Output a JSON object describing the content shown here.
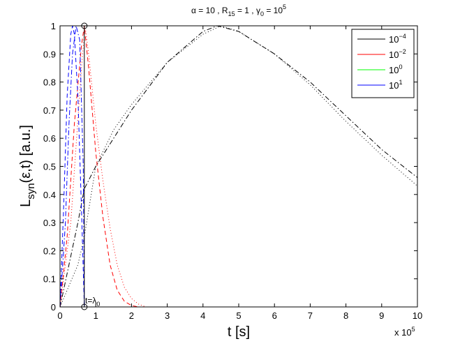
{
  "chart_data": {
    "type": "line",
    "title": "α = 10 , R15 = 1 , γ0 = 10^5",
    "title_parts": {
      "alpha": "α = 10 , R",
      "r_sub": "15",
      "r_eq": " = 1 , γ",
      "g_sub": "0",
      "g_eq": " = 10",
      "g_sup": "5"
    },
    "xlabel": "t [s]",
    "ylabel": "Lsyn(ε,t) [a.u.]",
    "ylabel_parts": {
      "main": "L",
      "sub": "syn",
      "rest": "(ε,t) [a.u.]"
    },
    "x_multiplier": "x 10",
    "x_multiplier_exp": "5",
    "xlim": [
      0,
      1000000
    ],
    "ylim": [
      0,
      1
    ],
    "xticks": [
      0,
      100000,
      200000,
      300000,
      400000,
      500000,
      600000,
      700000,
      800000,
      900000,
      1000000
    ],
    "xtick_labels": [
      "0",
      "1",
      "2",
      "3",
      "4",
      "5",
      "6",
      "7",
      "8",
      "9",
      "10"
    ],
    "yticks": [
      0,
      0.1,
      0.2,
      0.3,
      0.4,
      0.5,
      0.6,
      0.7,
      0.8,
      0.9,
      1
    ],
    "ytick_labels": [
      "0",
      "0.1",
      "0.2",
      "0.3",
      "0.4",
      "0.5",
      "0.6",
      "0.7",
      "0.8",
      "0.9",
      "1"
    ],
    "grid": false,
    "legend_position": "top-right",
    "legend": [
      {
        "base": "10",
        "exp": "−4",
        "color": "#000000"
      },
      {
        "base": "10",
        "exp": "−2",
        "color": "#ff0000"
      },
      {
        "base": "10",
        "exp": "0",
        "color": "#00ff00"
      },
      {
        "base": "10",
        "exp": "1",
        "color": "#0000ff"
      }
    ],
    "annotation": {
      "text_main": "t=λ",
      "text_sub": "0",
      "x": 68000
    },
    "series": [
      {
        "color": "#000000",
        "dash": "dashdot",
        "x": [
          0,
          50000,
          68000,
          100000,
          150000,
          200000,
          300000,
          400000,
          440000,
          500000,
          600000,
          700000,
          800000,
          900000,
          1000000
        ],
        "y": [
          0,
          0.3,
          0.42,
          0.5,
          0.6,
          0.7,
          0.87,
          0.98,
          1.0,
          0.98,
          0.9,
          0.8,
          0.68,
          0.56,
          0.46
        ]
      },
      {
        "color": "#000000",
        "dash": "dotted",
        "x": [
          0,
          50000,
          68000,
          100000,
          150000,
          200000,
          300000,
          400000,
          450000,
          500000,
          600000,
          700000,
          800000,
          900000,
          1000000
        ],
        "y": [
          0,
          0.15,
          0.25,
          0.5,
          0.63,
          0.72,
          0.87,
          0.97,
          1.0,
          0.98,
          0.9,
          0.79,
          0.66,
          0.54,
          0.43
        ]
      },
      {
        "color": "#ff0000",
        "dash": "dashed",
        "x": [
          0,
          20000,
          40000,
          60000,
          68000,
          80000,
          100000,
          120000,
          140000,
          160000,
          180000,
          200000,
          220000
        ],
        "y": [
          0,
          0.25,
          0.65,
          0.93,
          1.0,
          0.85,
          0.55,
          0.32,
          0.15,
          0.06,
          0.02,
          0.005,
          0
        ]
      },
      {
        "color": "#ff0000",
        "dash": "dotted",
        "x": [
          0,
          30000,
          60000,
          70000,
          80000,
          100000,
          120000,
          140000,
          160000,
          180000,
          200000,
          220000,
          240000
        ],
        "y": [
          0,
          0.3,
          0.85,
          1.0,
          0.9,
          0.65,
          0.45,
          0.28,
          0.15,
          0.07,
          0.03,
          0.01,
          0
        ]
      },
      {
        "color": "#0000ff",
        "dash": "dashed",
        "x": [
          0,
          10000,
          20000,
          30000,
          35000,
          40000,
          50000,
          60000,
          68000
        ],
        "y": [
          0,
          0.35,
          0.75,
          0.97,
          1.0,
          0.97,
          0.75,
          0.35,
          0
        ]
      },
      {
        "color": "#0000ff",
        "dash": "dashdot",
        "x": [
          0,
          15000,
          25000,
          35000,
          45000,
          55000,
          65000,
          68000
        ],
        "y": [
          0,
          0.3,
          0.65,
          0.9,
          1.0,
          0.95,
          0.5,
          0
        ]
      },
      {
        "color": "#000000",
        "dash": "solid",
        "x": [
          0,
          68000,
          68000,
          68000,
          1000000
        ],
        "y": [
          0,
          0,
          1.0,
          0,
          0
        ]
      }
    ]
  }
}
